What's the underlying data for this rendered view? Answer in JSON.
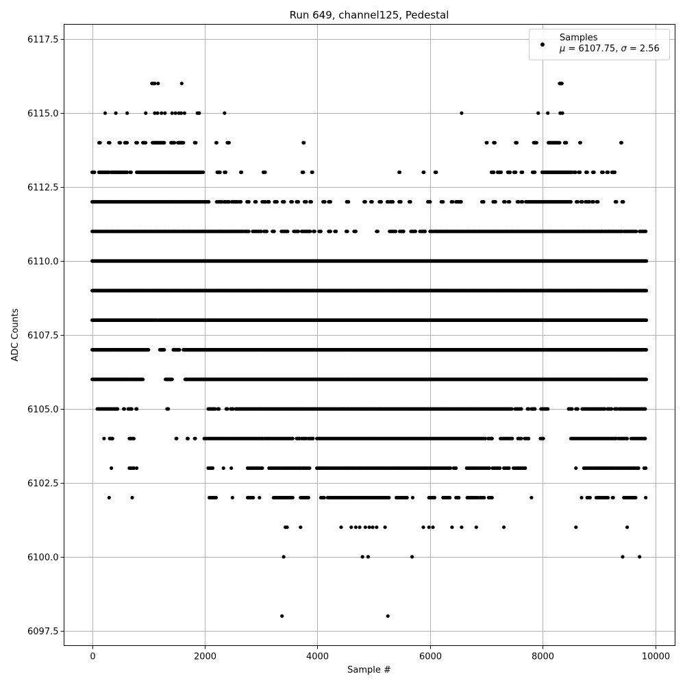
{
  "chart_data": {
    "type": "scatter",
    "title": "Run 649, channel125, Pedestal",
    "xlabel": "Sample #",
    "ylabel": "ADC Counts",
    "xlim": [
      -500,
      10350
    ],
    "ylim": [
      6097.0,
      6118.0
    ],
    "xticks": [
      0,
      2000,
      4000,
      6000,
      8000,
      10000
    ],
    "xtick_labels": [
      "0",
      "2000",
      "4000",
      "6000",
      "8000",
      "10000"
    ],
    "yticks": [
      6097.5,
      6100.0,
      6102.5,
      6105.0,
      6107.5,
      6110.0,
      6112.5,
      6115.0,
      6117.5
    ],
    "ytick_labels": [
      "6097.5",
      "6100.0",
      "6102.5",
      "6105.0",
      "6107.5",
      "6110.0",
      "6112.5",
      "6115.0",
      "6117.5"
    ],
    "grid": true,
    "legend": {
      "position": "top-right",
      "label": "Samples",
      "stats_mu_symbol": "μ",
      "stats_mu_value": " = 6107.75, ",
      "stats_sigma_symbol": "σ",
      "stats_sigma_value": " = 2.56"
    },
    "marker_color": "#000000",
    "series": [
      {
        "name": "Samples",
        "points": {
          "6098": [
            3370,
            5250
          ],
          "6100": [
            3400,
            4800,
            4900,
            5680,
            9420,
            9720
          ],
          "6101": [
            3430,
            3460,
            3700,
            4420,
            4600,
            4680,
            4750,
            4850,
            4920,
            4980,
            5050,
            5200,
            5880,
            5980,
            6050,
            6390,
            6560,
            6820,
            7310,
            8590,
            9500
          ],
          "6116": [
            1060,
            1090,
            1110,
            1170,
            1590,
            8300,
            8320,
            8340
          ],
          "6115": [
            230,
            420,
            620,
            950,
            1110,
            1160,
            1230,
            1290,
            1420,
            1480,
            1540,
            1580,
            1640,
            1870,
            1900,
            2350,
            6560,
            7920,
            8090,
            8310,
            8350
          ]
        },
        "sparse_levels": {
          "6102": [
            [
              300,
              300
            ],
            [
              710,
              710
            ],
            [
              2080,
              2200
            ],
            [
              2490,
              2490
            ],
            [
              2760,
              2860
            ],
            [
              2970,
              2970
            ],
            [
              3220,
              3560
            ],
            [
              3700,
              3840
            ],
            [
              4060,
              4120
            ],
            [
              4180,
              5270
            ],
            [
              5400,
              5590
            ],
            [
              5690,
              5690
            ],
            [
              5980,
              6080
            ],
            [
              6230,
              6350
            ],
            [
              6460,
              6510
            ],
            [
              6660,
              6850
            ],
            [
              6890,
              6960
            ],
            [
              7040,
              7100
            ],
            [
              7800,
              7800
            ],
            [
              8690,
              8690
            ],
            [
              8790,
              8840
            ],
            [
              8950,
              9050
            ],
            [
              9080,
              9160
            ],
            [
              9240,
              9250
            ],
            [
              9440,
              9550
            ],
            [
              9570,
              9650
            ],
            [
              9830,
              9830
            ]
          ],
          "6103": [
            [
              340,
              340
            ],
            [
              660,
              740
            ],
            [
              790,
              790
            ],
            [
              2060,
              2140
            ],
            [
              2330,
              2330
            ],
            [
              2470,
              2470
            ],
            [
              2760,
              3020
            ],
            [
              3140,
              3700
            ],
            [
              3730,
              3860
            ],
            [
              3990,
              6360
            ],
            [
              6420,
              6460
            ],
            [
              6650,
              7050
            ],
            [
              7110,
              7240
            ],
            [
              7310,
              7400
            ],
            [
              7480,
              7690
            ],
            [
              8590,
              8590
            ],
            [
              8730,
              9610
            ],
            [
              9630,
              9700
            ],
            [
              9800,
              9830
            ]
          ],
          "6104": [
            [
              210,
              210
            ],
            [
              310,
              360
            ],
            [
              660,
              740
            ],
            [
              1490,
              1500
            ],
            [
              1690,
              1700
            ],
            [
              1820,
              1830
            ],
            [
              1990,
              2420
            ],
            [
              2450,
              3030
            ],
            [
              3060,
              3560
            ],
            [
              3630,
              3680
            ],
            [
              3720,
              3800
            ],
            [
              3840,
              3920
            ],
            [
              3990,
              6980
            ],
            [
              7030,
              7100
            ],
            [
              7250,
              7460
            ],
            [
              7560,
              7620
            ],
            [
              7680,
              7750
            ],
            [
              7960,
              8010
            ],
            [
              8500,
              9300
            ],
            [
              9340,
              9500
            ],
            [
              9570,
              9820
            ]
          ],
          "6105": [
            [
              90,
              400
            ],
            [
              420,
              450
            ],
            [
              560,
              570
            ],
            [
              640,
              700
            ],
            [
              780,
              790
            ],
            [
              1330,
              1350
            ],
            [
              2060,
              2180
            ],
            [
              2230,
              2250
            ],
            [
              2380,
              2400
            ],
            [
              2460,
              2500
            ],
            [
              2550,
              7450
            ],
            [
              7510,
              7620
            ],
            [
              7730,
              7750
            ],
            [
              7800,
              7860
            ],
            [
              7970,
              8090
            ],
            [
              8460,
              8520
            ],
            [
              8590,
              8620
            ],
            [
              8700,
              8920
            ],
            [
              8940,
              9100
            ],
            [
              9150,
              9220
            ],
            [
              9280,
              9320
            ],
            [
              9360,
              9820
            ]
          ],
          "6111": [
            [
              0,
              2000
            ],
            [
              2020,
              2280
            ],
            [
              2300,
              2670
            ],
            [
              2700,
              2780
            ],
            [
              2850,
              3000
            ],
            [
              3050,
              3100
            ],
            [
              3200,
              3230
            ],
            [
              3360,
              3470
            ],
            [
              3580,
              3660
            ],
            [
              3720,
              3870
            ],
            [
              3930,
              3950
            ],
            [
              4030,
              4060
            ],
            [
              4200,
              4230
            ],
            [
              4310,
              4330
            ],
            [
              4510,
              4530
            ],
            [
              4650,
              4680
            ],
            [
              5050,
              5070
            ],
            [
              5280,
              5390
            ],
            [
              5460,
              5530
            ],
            [
              5660,
              5740
            ],
            [
              5820,
              5910
            ],
            [
              6000,
              6040
            ],
            [
              6070,
              9050
            ],
            [
              9080,
              9400
            ],
            [
              9440,
              9660
            ],
            [
              9720,
              9830
            ]
          ],
          "6112": [
            [
              0,
              2000
            ],
            [
              2010,
              2070
            ],
            [
              2210,
              2300
            ],
            [
              2340,
              2430
            ],
            [
              2480,
              2580
            ],
            [
              2610,
              2640
            ],
            [
              2750,
              2780
            ],
            [
              2890,
              2910
            ],
            [
              3020,
              3070
            ],
            [
              3110,
              3140
            ],
            [
              3240,
              3280
            ],
            [
              3380,
              3410
            ],
            [
              3530,
              3550
            ],
            [
              3630,
              3660
            ],
            [
              3770,
              3800
            ],
            [
              3870,
              3890
            ],
            [
              4100,
              4130
            ],
            [
              4200,
              4230
            ],
            [
              4520,
              4550
            ],
            [
              4830,
              4850
            ],
            [
              4950,
              4970
            ],
            [
              5100,
              5130
            ],
            [
              5240,
              5260
            ],
            [
              5300,
              5340
            ],
            [
              5450,
              5480
            ],
            [
              5630,
              5650
            ],
            [
              5960,
              6000
            ],
            [
              6200,
              6230
            ],
            [
              6380,
              6400
            ],
            [
              6460,
              6550
            ],
            [
              6920,
              6950
            ],
            [
              7120,
              7160
            ],
            [
              7310,
              7330
            ],
            [
              7390,
              7410
            ],
            [
              7550,
              7570
            ],
            [
              7620,
              7640
            ],
            [
              7700,
              8500
            ],
            [
              8600,
              8620
            ],
            [
              8680,
              8700
            ],
            [
              8760,
              8780
            ],
            [
              8810,
              8830
            ],
            [
              8880,
              8900
            ],
            [
              8960,
              8980
            ],
            [
              9290,
              9310
            ],
            [
              9410,
              9430
            ]
          ]
        },
        "dense_levels": {
          "6106": [
            [
              0,
              660
            ],
            [
              680,
              900
            ],
            [
              1300,
              1420
            ],
            [
              1650,
              9840
            ]
          ],
          "6107": [
            [
              0,
              360
            ],
            [
              380,
              1000
            ],
            [
              1200,
              1280
            ],
            [
              1440,
              1550
            ],
            [
              1620,
              9840
            ]
          ],
          "6108": [
            [
              0,
              1150
            ],
            [
              1180,
              9840
            ]
          ],
          "6109": [
            [
              0,
              9840
            ]
          ],
          "6110": [
            [
              0,
              9840
            ]
          ],
          "6113": [
            [
              0,
              40
            ],
            [
              120,
              300
            ],
            [
              340,
              620
            ],
            [
              670,
              690
            ],
            [
              790,
              800
            ],
            [
              820,
              1940
            ],
            [
              1960,
              1970
            ],
            [
              2220,
              2270
            ],
            [
              2350,
              2370
            ],
            [
              2640,
              2650
            ],
            [
              3040,
              3070
            ],
            [
              3730,
              3750
            ],
            [
              3900,
              3910
            ],
            [
              5450,
              5460
            ],
            [
              5880,
              5890
            ],
            [
              6090,
              6110
            ],
            [
              7090,
              7130
            ],
            [
              7200,
              7260
            ],
            [
              7380,
              7420
            ],
            [
              7490,
              7520
            ],
            [
              7620,
              7640
            ],
            [
              7820,
              7860
            ],
            [
              7990,
              8520
            ],
            [
              8560,
              8580
            ],
            [
              8640,
              8660
            ],
            [
              8770,
              8790
            ],
            [
              8890,
              8910
            ],
            [
              9050,
              9070
            ],
            [
              9140,
              9160
            ],
            [
              9230,
              9280
            ]
          ],
          "6114": [
            [
              120,
              140
            ],
            [
              290,
              310
            ],
            [
              480,
              500
            ],
            [
              580,
              620
            ],
            [
              780,
              800
            ],
            [
              900,
              950
            ],
            [
              1070,
              1280
            ],
            [
              1400,
              1460
            ],
            [
              1520,
              1620
            ],
            [
              1820,
              1840
            ],
            [
              2200,
              2210
            ],
            [
              2400,
              2430
            ],
            [
              3750,
              3760
            ],
            [
              7000,
              7010
            ],
            [
              7130,
              7150
            ],
            [
              7520,
              7540
            ],
            [
              7840,
              7890
            ],
            [
              8100,
              8300
            ],
            [
              8390,
              8420
            ],
            [
              8660,
              8670
            ],
            [
              9390,
              9400
            ]
          ]
        }
      }
    ]
  }
}
